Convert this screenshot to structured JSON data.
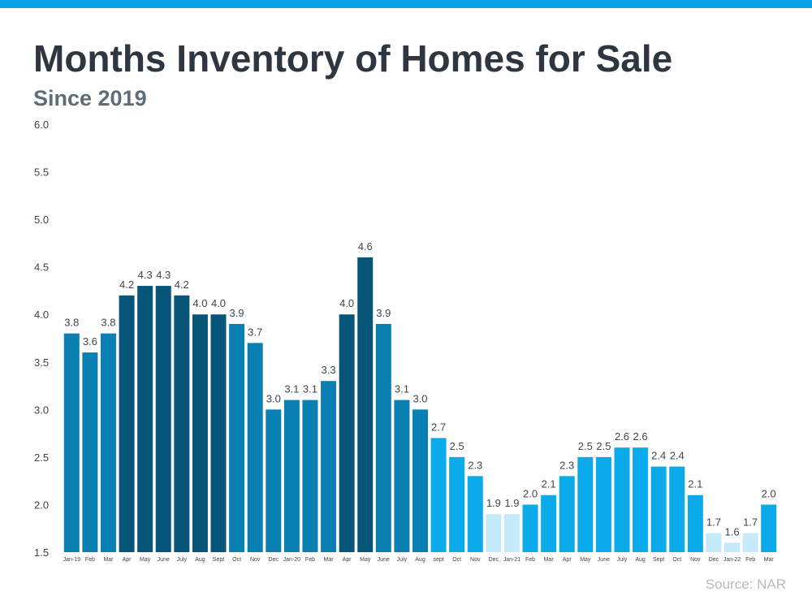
{
  "title": "Months Inventory of Homes for Sale",
  "subtitle": "Since 2019",
  "source": "Source: NAR",
  "colors": {
    "accent_bar": "#0aa3e8",
    "title": "#2e3640",
    "subtitle": "#5e6d78",
    "source": "#b3bcc3"
  },
  "chart_data": {
    "type": "bar",
    "ylim": [
      1.5,
      6.0
    ],
    "yticks": [
      "1.5",
      "2.0",
      "2.5",
      "3.0",
      "3.5",
      "4.0",
      "4.5",
      "5.0",
      "5.5",
      "6.0"
    ],
    "grid": false,
    "categories": [
      "Jan-19",
      "Feb",
      "Mar",
      "Apr",
      "May",
      "June",
      "July",
      "Aug",
      "Sept",
      "Oct",
      "Nov",
      "Dec",
      "Jan-20",
      "Feb",
      "Mar",
      "Apr",
      "May",
      "June",
      "July",
      "Aug",
      "sept",
      "Oct",
      "Nov",
      "Dec",
      "Jan-21",
      "Feb",
      "Mar",
      "Apr",
      "May",
      "June",
      "July",
      "Aug",
      "Sept",
      "Oct",
      "Nov",
      "Dec",
      "Jan-22",
      "Feb",
      "Mar"
    ],
    "values": [
      3.8,
      3.6,
      3.8,
      4.2,
      4.3,
      4.3,
      4.2,
      4.0,
      4.0,
      3.9,
      3.7,
      3.0,
      3.1,
      3.1,
      3.3,
      4.0,
      4.6,
      3.9,
      3.1,
      3.0,
      2.7,
      2.5,
      2.3,
      1.9,
      1.9,
      2.0,
      2.1,
      2.3,
      2.5,
      2.5,
      2.6,
      2.6,
      2.4,
      2.4,
      2.1,
      1.7,
      1.6,
      1.7,
      2.0
    ],
    "labels": [
      "3.8",
      "3.6",
      "3.8",
      "4.2",
      "4.3",
      "4.3",
      "4.2",
      "4.0",
      "4.0",
      "3.9",
      "3.7",
      "3.0",
      "3.1",
      "3.1",
      "3.3",
      "4.0",
      "4.6",
      "3.9",
      "3.1",
      "3.0",
      "2.7",
      "2.5",
      "2.3",
      "1.9",
      "1.9",
      "2.0",
      "2.1",
      "2.3",
      "2.5",
      "2.5",
      "2.6",
      "2.6",
      "2.4",
      "2.4",
      "2.1",
      "1.7",
      "1.6",
      "1.7",
      "2.0"
    ],
    "bar_colors": [
      "#0a7fb2",
      "#0a7fb2",
      "#0a7fb2",
      "#075679",
      "#075679",
      "#075679",
      "#075679",
      "#075679",
      "#075679",
      "#0a7fb2",
      "#0a7fb2",
      "#0a7fb2",
      "#0a7fb2",
      "#0a7fb2",
      "#0a7fb2",
      "#075679",
      "#075679",
      "#0a7fb2",
      "#0a7fb2",
      "#0a7fb2",
      "#0aaaeb",
      "#0aaaeb",
      "#0aaaeb",
      "#c5ebfb",
      "#c5ebfb",
      "#0aaaeb",
      "#0aaaeb",
      "#0aaaeb",
      "#0aaaeb",
      "#0aaaeb",
      "#0aaaeb",
      "#0aaaeb",
      "#0aaaeb",
      "#0aaaeb",
      "#0aaaeb",
      "#c5ebfb",
      "#c5ebfb",
      "#c5ebfb",
      "#0aaaeb"
    ]
  }
}
